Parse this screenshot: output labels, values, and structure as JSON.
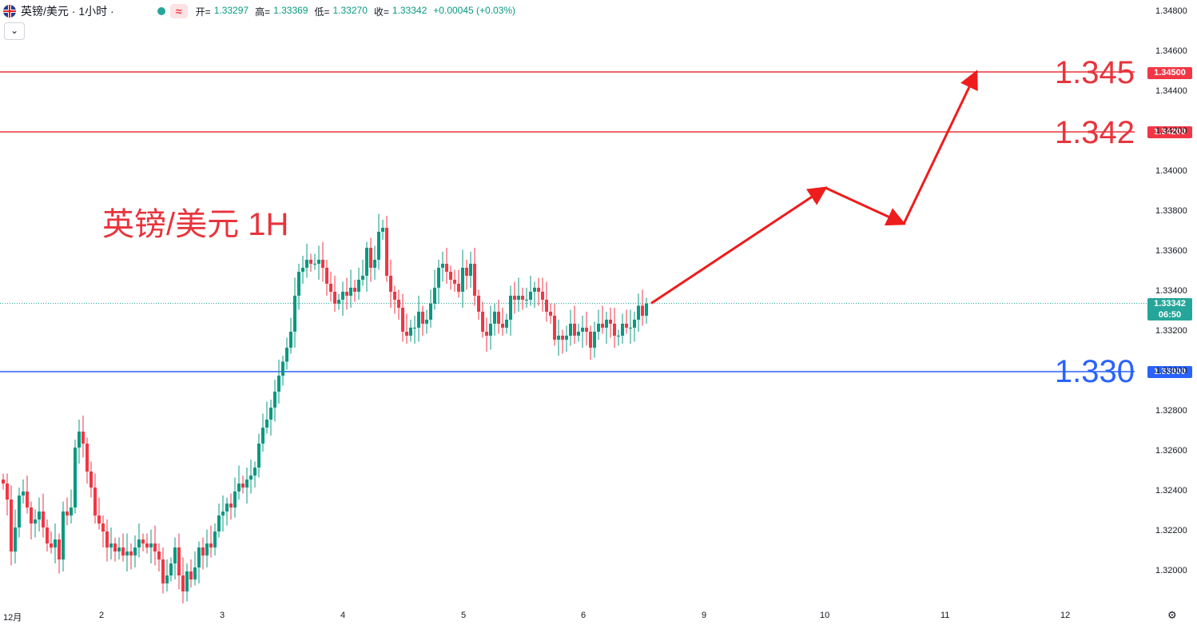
{
  "header": {
    "symbol": "英镑/美元 · 1小时 ·",
    "wave_icon": "≈",
    "open_label": "开=",
    "open": "1.33297",
    "high_label": "高=",
    "high": "1.33369",
    "low_label": "低=",
    "low": "1.33270",
    "close_label": "收=",
    "close": "1.33342",
    "change": "+0.00045 (+0.03%)",
    "collapse_icon": "chevron-down-icon"
  },
  "annotation_title": "英镑/美元 1H",
  "levels": {
    "r2_big": "1.345",
    "r2_tag": "1.34500",
    "r1_big": "1.342",
    "r1_tag": "1.34200",
    "s1_big": "1.330",
    "s1_tag": "1.33000"
  },
  "current_price": {
    "price": "1.33342",
    "countdown": "06:50"
  },
  "colors": {
    "up": "#089981",
    "down": "#f23645",
    "resistance": "#e8343c",
    "support": "#2962ff",
    "arrow": "#ee1c1c"
  },
  "chart_data": {
    "type": "candlestick",
    "title": "英镑/美元 1H",
    "ylim": [
      1.319,
      1.3508
    ],
    "y_ticks": [
      "1.34800",
      "1.34600",
      "1.34400",
      "1.34200",
      "1.34000",
      "1.33800",
      "1.33600",
      "1.33400",
      "1.33200",
      "1.33000",
      "1.32800",
      "1.32600",
      "1.32400",
      "1.32200",
      "1.32000"
    ],
    "x_ticks": [
      "12月",
      "2",
      "3",
      "4",
      "5",
      "6",
      "9",
      "10",
      "11",
      "12"
    ],
    "horizontal_levels": [
      1.345,
      1.342,
      1.33
    ],
    "current_price": 1.33342,
    "projection_path": [
      [
        1.33342
      ],
      [
        1.3392
      ],
      [
        1.3374
      ],
      [
        1.345
      ]
    ],
    "closes": [
      1.3244,
      1.3236,
      1.321,
      1.3222,
      1.3238,
      1.324,
      1.3232,
      1.3224,
      1.3226,
      1.323,
      1.3222,
      1.3214,
      1.3212,
      1.3216,
      1.3206,
      1.323,
      1.3228,
      1.3232,
      1.3262,
      1.327,
      1.3264,
      1.325,
      1.3242,
      1.3228,
      1.3224,
      1.322,
      1.3212,
      1.3214,
      1.321,
      1.3212,
      1.3208,
      1.321,
      1.3208,
      1.3212,
      1.3216,
      1.3214,
      1.3212,
      1.3214,
      1.321,
      1.3206,
      1.3194,
      1.3198,
      1.3204,
      1.3212,
      1.3198,
      1.319,
      1.32,
      1.3196,
      1.3202,
      1.3212,
      1.3208,
      1.3214,
      1.3212,
      1.322,
      1.3228,
      1.323,
      1.3234,
      1.3232,
      1.324,
      1.3244,
      1.3242,
      1.3246,
      1.3248,
      1.3252,
      1.3264,
      1.3272,
      1.3276,
      1.3282,
      1.329,
      1.3298,
      1.3305,
      1.3312,
      1.332,
      1.3338,
      1.335,
      1.3352,
      1.3356,
      1.3354,
      1.3354,
      1.3356,
      1.3352,
      1.3344,
      1.334,
      1.3334,
      1.3336,
      1.334,
      1.3338,
      1.3342,
      1.334,
      1.3346,
      1.3348,
      1.3362,
      1.3352,
      1.3356,
      1.337,
      1.3372,
      1.3348,
      1.334,
      1.3336,
      1.3332,
      1.332,
      1.3318,
      1.3322,
      1.3322,
      1.333,
      1.3324,
      1.3326,
      1.3334,
      1.3342,
      1.3352,
      1.3354,
      1.335,
      1.3346,
      1.3344,
      1.334,
      1.3352,
      1.3348,
      1.3354,
      1.3338,
      1.333,
      1.332,
      1.3318,
      1.3324,
      1.333,
      1.3324,
      1.3322,
      1.3326,
      1.3338,
      1.3336,
      1.3338,
      1.3336,
      1.3336,
      1.334,
      1.3342,
      1.334,
      1.3336,
      1.333,
      1.3328,
      1.3316,
      1.3318,
      1.3316,
      1.3318,
      1.3324,
      1.3318,
      1.332,
      1.3322,
      1.332,
      1.3312,
      1.332,
      1.3324,
      1.3322,
      1.3326,
      1.3324,
      1.3318,
      1.3318,
      1.3324,
      1.3322,
      1.3322,
      1.3326,
      1.3333,
      1.3328,
      1.3334
    ]
  }
}
